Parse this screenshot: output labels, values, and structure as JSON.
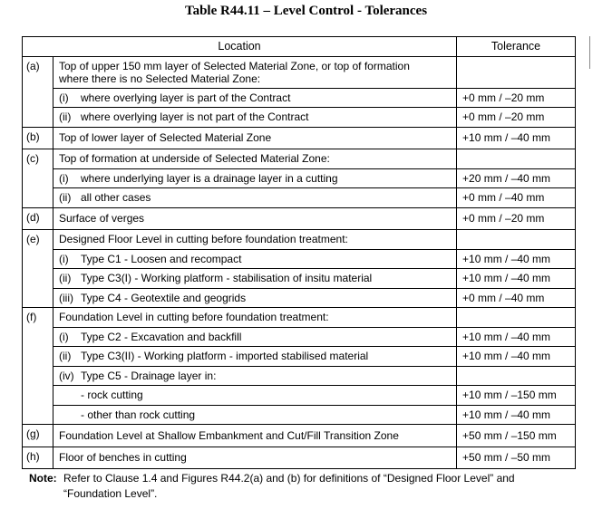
{
  "title": "Table R44.11 – Level Control - Tolerances",
  "table": {
    "headers": [
      "Location",
      "Tolerance"
    ],
    "groups": [
      {
        "label": "(a)",
        "text": "Top of upper 150 mm layer of Selected Material Zone, or top of formation where there is no Selected Material Zone:",
        "items": [
          {
            "num": "(i)",
            "text": "where overlying layer is part of the Contract",
            "tolerance": "+0 mm / –20 mm"
          },
          {
            "num": "(ii)",
            "text": "where overlying layer is not part of the Contract",
            "tolerance": "+0 mm / –20 mm"
          }
        ]
      },
      {
        "label": "(b)",
        "text": "Top of lower layer of Selected Material Zone",
        "tolerance": "+10 mm / –40 mm"
      },
      {
        "label": "(c)",
        "text": "Top of formation at underside of Selected Material Zone:",
        "items": [
          {
            "num": "(i)",
            "text": "where underlying layer is a drainage layer in a cutting",
            "tolerance": "+20 mm / –40 mm"
          },
          {
            "num": "(ii)",
            "text": "all other cases",
            "tolerance": "+0 mm / –40 mm"
          }
        ]
      },
      {
        "label": "(d)",
        "text": "Surface of verges",
        "tolerance": "+0 mm / –20 mm"
      },
      {
        "label": "(e)",
        "text": "Designed Floor Level in cutting before foundation treatment:",
        "items": [
          {
            "num": "(i)",
            "text": "Type C1 - Loosen and recompact",
            "tolerance": "+10 mm / –40 mm"
          },
          {
            "num": "(ii)",
            "text": "Type C3(I) - Working platform - stabilisation of insitu material",
            "tolerance": "+10 mm / –40 mm"
          },
          {
            "num": "(iii)",
            "text": "Type C4 - Geotextile and geogrids",
            "tolerance": "+0 mm / –40 mm"
          }
        ]
      },
      {
        "label": "(f)",
        "text": "Foundation Level in cutting before foundation treatment:",
        "items": [
          {
            "num": "(i)",
            "text": "Type C2 - Excavation and backfill",
            "tolerance": "+10 mm / –40 mm"
          },
          {
            "num": "(ii)",
            "text": "Type C3(II) - Working platform - imported stabilised material",
            "tolerance": "+10 mm / –40 mm"
          },
          {
            "num": "(iv)",
            "text": "Type C5 - Drainage layer in:",
            "items": [
              {
                "text": "- rock cutting",
                "tolerance": "+10 mm / –150 mm"
              },
              {
                "text": "- other than rock cutting",
                "tolerance": "+10 mm / –40 mm"
              }
            ]
          }
        ]
      },
      {
        "label": "(g)",
        "text": "Foundation Level at Shallow Embankment and Cut/Fill Transition Zone",
        "tolerance": "+50 mm / –150 mm"
      },
      {
        "label": "(h)",
        "text": "Floor of benches in cutting",
        "tolerance": "+50 mm / –50 mm"
      }
    ]
  },
  "note": {
    "label": "Note:",
    "text": "Refer to Clause 1.4 and Figures R44.2(a) and (b) for definitions of “Designed Floor Level” and “Foundation Level”."
  }
}
